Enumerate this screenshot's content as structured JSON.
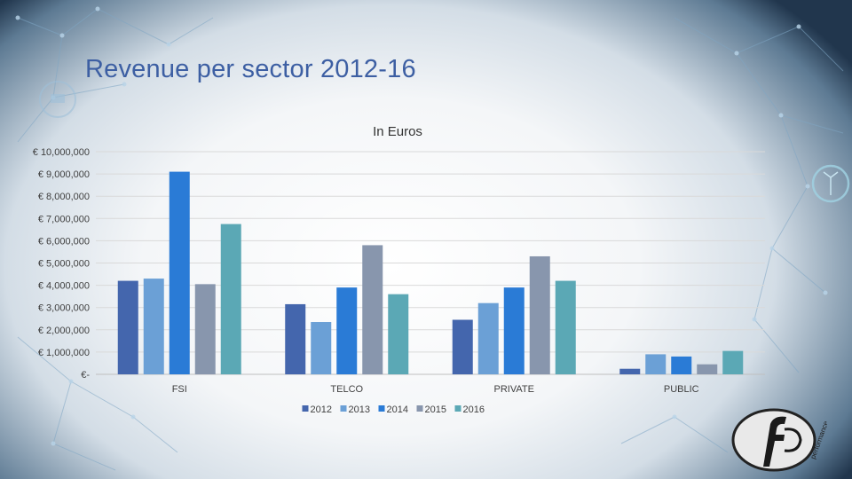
{
  "slide": {
    "title": "Revenue per sector 2012-16",
    "logo_text": "performance"
  },
  "colors": {
    "title": "#3d5fa3",
    "series": [
      "#4466ad",
      "#6ba0d6",
      "#2a7bd6",
      "#8896ad",
      "#5ba8b5"
    ]
  },
  "chart_data": {
    "type": "bar",
    "title": "In Euros",
    "xlabel": "",
    "ylabel": "",
    "categories": [
      "FSI",
      "TELCO",
      "PRIVATE",
      "PUBLIC"
    ],
    "series": [
      {
        "name": "2012",
        "values": [
          4200000,
          3150000,
          2450000,
          250000
        ]
      },
      {
        "name": "2013",
        "values": [
          4300000,
          2350000,
          3200000,
          900000
        ]
      },
      {
        "name": "2014",
        "values": [
          9100000,
          3900000,
          3900000,
          800000
        ]
      },
      {
        "name": "2015",
        "values": [
          4050000,
          5800000,
          5300000,
          450000
        ]
      },
      {
        "name": "2016",
        "values": [
          6750000,
          3600000,
          4200000,
          1050000
        ]
      }
    ],
    "ylim": [
      0,
      10000000
    ],
    "yticks": [
      0,
      1000000,
      2000000,
      3000000,
      4000000,
      5000000,
      6000000,
      7000000,
      8000000,
      9000000,
      10000000
    ],
    "ytick_labels": [
      "€-",
      "€ 1,000,000",
      "€ 2,000,000",
      "€ 3,000,000",
      "€ 4,000,000",
      "€ 5,000,000",
      "€ 6,000,000",
      "€ 7,000,000",
      "€ 8,000,000",
      "€ 9,000,000",
      "€ 10,000,000"
    ],
    "grid": true,
    "legend": "bottom"
  }
}
